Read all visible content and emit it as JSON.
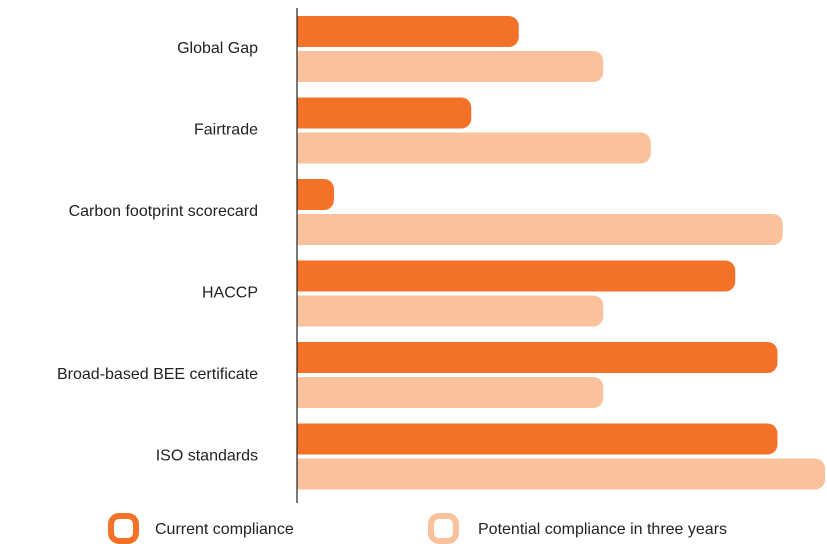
{
  "chart_data": {
    "type": "barh",
    "categories": [
      "Global Gap",
      "Fairtrade",
      "Carbon footprint scorecard",
      "HACCP",
      "Broad-based BEE certificate",
      "ISO standards"
    ],
    "series": [
      {
        "name": "Current compliance",
        "color": "#f47228",
        "values": [
          42,
          33,
          7,
          83,
          91,
          91
        ]
      },
      {
        "name": "Potential compliance in three years",
        "color": "#f9c29c",
        "values": [
          58,
          67,
          92,
          58,
          58,
          100
        ]
      }
    ],
    "xlim": [
      0,
      100
    ]
  }
}
